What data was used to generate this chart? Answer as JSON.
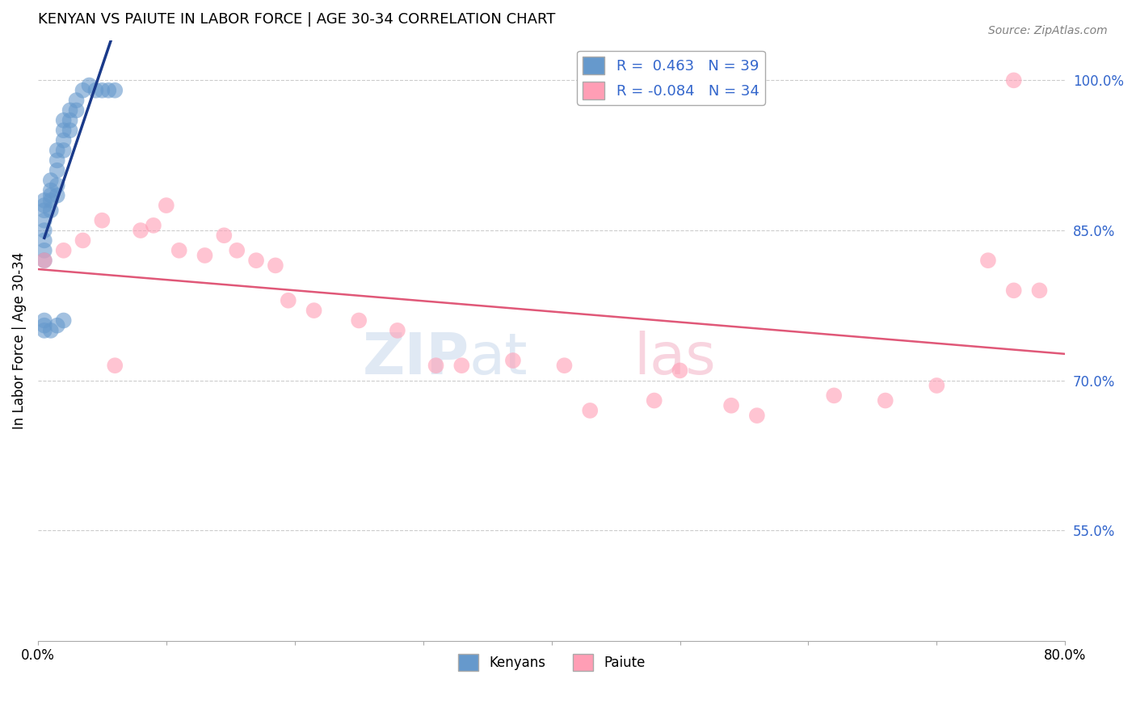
{
  "title": "KENYAN VS PAIUTE IN LABOR FORCE | AGE 30-34 CORRELATION CHART",
  "source": "Source: ZipAtlas.com",
  "xlabel": "",
  "ylabel": "In Labor Force | Age 30-34",
  "xlim": [
    0.0,
    0.8
  ],
  "ylim": [
    0.44,
    1.04
  ],
  "xticks": [
    0.0,
    0.1,
    0.2,
    0.3,
    0.4,
    0.5,
    0.6,
    0.7,
    0.8
  ],
  "xticklabels": [
    "0.0%",
    "",
    "",
    "",
    "",
    "",
    "",
    "",
    "80.0%"
  ],
  "ytick_positions": [
    0.55,
    0.7,
    0.85,
    1.0
  ],
  "ytick_labels": [
    "55.0%",
    "70.0%",
    "85.0%",
    "100.0%"
  ],
  "legend_text_blue": "R =  0.463   N = 39",
  "legend_text_pink": "R = -0.084   N = 34",
  "legend_label_blue": "Kenyans",
  "legend_label_pink": "Paiute",
  "kenyan_x": [
    0.005,
    0.005,
    0.005,
    0.005,
    0.005,
    0.005,
    0.005,
    0.005,
    0.01,
    0.01,
    0.01,
    0.01,
    0.01,
    0.015,
    0.015,
    0.015,
    0.015,
    0.015,
    0.02,
    0.02,
    0.02,
    0.02,
    0.025,
    0.025,
    0.025,
    0.03,
    0.03,
    0.035,
    0.04,
    0.045,
    0.05,
    0.055,
    0.06,
    0.005,
    0.005,
    0.005,
    0.01,
    0.015,
    0.02
  ],
  "kenyan_y": [
    0.87,
    0.875,
    0.88,
    0.86,
    0.85,
    0.84,
    0.83,
    0.82,
    0.9,
    0.89,
    0.885,
    0.88,
    0.87,
    0.93,
    0.92,
    0.91,
    0.895,
    0.885,
    0.96,
    0.95,
    0.94,
    0.93,
    0.97,
    0.96,
    0.95,
    0.98,
    0.97,
    0.99,
    0.995,
    0.99,
    0.99,
    0.99,
    0.99,
    0.755,
    0.76,
    0.75,
    0.75,
    0.755,
    0.76
  ],
  "paiute_x": [
    0.005,
    0.02,
    0.035,
    0.05,
    0.06,
    0.08,
    0.09,
    0.1,
    0.11,
    0.13,
    0.145,
    0.155,
    0.17,
    0.185,
    0.195,
    0.215,
    0.25,
    0.28,
    0.31,
    0.33,
    0.37,
    0.41,
    0.43,
    0.48,
    0.5,
    0.54,
    0.56,
    0.62,
    0.66,
    0.7,
    0.74,
    0.76,
    0.78,
    0.76
  ],
  "paiute_y": [
    0.82,
    0.83,
    0.84,
    0.86,
    0.715,
    0.85,
    0.855,
    0.875,
    0.83,
    0.825,
    0.845,
    0.83,
    0.82,
    0.815,
    0.78,
    0.77,
    0.76,
    0.75,
    0.715,
    0.715,
    0.72,
    0.715,
    0.67,
    0.68,
    0.71,
    0.675,
    0.665,
    0.685,
    0.68,
    0.695,
    0.82,
    0.79,
    0.79,
    1.0
  ],
  "blue_color": "#6699cc",
  "pink_color": "#ff9eb5",
  "trend_blue": "#1a3a8a",
  "trend_pink": "#e05878",
  "background_color": "#ffffff",
  "grid_color": "#cccccc"
}
